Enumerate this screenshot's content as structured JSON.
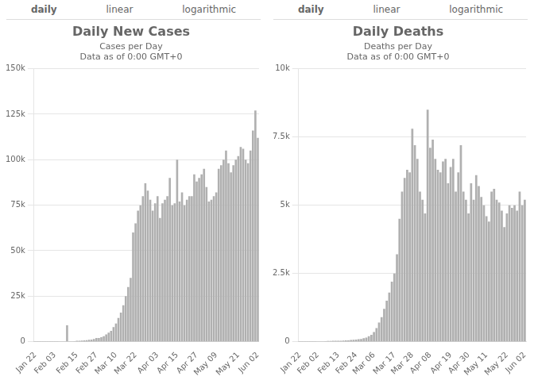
{
  "chart_data": [
    {
      "type": "bar",
      "title": "Daily New Cases",
      "subtitle": "Cases per Day\nData as of 0:00 GMT+0",
      "annotations": [
        "daily",
        "linear",
        "logarithmic"
      ],
      "categories": [
        "Jan 22",
        null,
        null,
        null,
        null,
        null,
        null,
        null,
        "Feb 03",
        null,
        null,
        null,
        null,
        null,
        null,
        null,
        null,
        "Feb 15",
        null,
        null,
        null,
        null,
        null,
        null,
        null,
        "Feb 27",
        null,
        null,
        null,
        null,
        null,
        null,
        null,
        "Mar 10",
        null,
        null,
        null,
        null,
        null,
        null,
        null,
        "Mar 22",
        null,
        null,
        null,
        null,
        null,
        null,
        null,
        null,
        "Apr 03",
        null,
        null,
        null,
        null,
        null,
        null,
        null,
        "Apr 15",
        null,
        null,
        null,
        null,
        null,
        null,
        null,
        "Apr 27",
        null,
        null,
        null,
        null,
        null,
        null,
        null,
        "May 09",
        null,
        null,
        null,
        null,
        null,
        null,
        null,
        null,
        "May 21",
        null,
        null,
        null,
        null,
        null,
        null,
        null,
        "Jun 02"
      ],
      "values": [
        50,
        50,
        50,
        50,
        50,
        50,
        50,
        100,
        100,
        100,
        150,
        200,
        200,
        9000,
        200,
        200,
        300,
        500,
        500,
        600,
        700,
        800,
        1000,
        1200,
        1500,
        2000,
        2000,
        2500,
        3000,
        4000,
        5000,
        6000,
        8000,
        10000,
        13000,
        16000,
        20000,
        25000,
        30000,
        35000,
        60000,
        65000,
        72000,
        75000,
        80000,
        87000,
        83000,
        78000,
        72000,
        76000,
        80000,
        68000,
        76000,
        78000,
        80000,
        90000,
        75000,
        76000,
        100000,
        77000,
        82000,
        75000,
        78000,
        80000,
        80000,
        92000,
        88000,
        90000,
        92000,
        95000,
        85000,
        77000,
        78000,
        80000,
        82000,
        95000,
        97000,
        100000,
        105000,
        98000,
        93000,
        97000,
        100000,
        102000,
        107000,
        106000,
        100000,
        98000,
        105000,
        116000,
        127000,
        112000
      ],
      "color": "#b0b0b0",
      "ylim": [
        0,
        150000
      ],
      "yticks": [
        0,
        {
          "value": 25000,
          "label": "25k"
        },
        {
          "value": 50000,
          "label": "50k"
        },
        {
          "value": 75000,
          "label": "75k"
        },
        {
          "value": 100000,
          "label": "100k"
        },
        {
          "value": 125000,
          "label": "125k"
        },
        {
          "value": 150000,
          "label": "150k"
        }
      ],
      "grid": true
    },
    {
      "type": "bar",
      "title": "Daily Deaths",
      "subtitle": "Deaths per Day\nData as of 0:00 GMT+0",
      "annotations": [
        "daily",
        "linear",
        "logarithmic"
      ],
      "categories": [
        "Jan 22",
        null,
        null,
        null,
        null,
        null,
        null,
        "Feb 02",
        null,
        null,
        null,
        null,
        null,
        null,
        null,
        "Feb 13",
        null,
        null,
        null,
        null,
        null,
        null,
        "Feb 24",
        null,
        null,
        null,
        null,
        null,
        null,
        "Mar 06",
        null,
        null,
        null,
        null,
        null,
        null,
        null,
        "Mar 17",
        null,
        null,
        null,
        null,
        null,
        null,
        "Mar 28",
        null,
        null,
        null,
        null,
        null,
        null,
        "Apr 08",
        null,
        null,
        null,
        null,
        null,
        null,
        null,
        "Apr 19",
        null,
        null,
        null,
        null,
        null,
        null,
        "Apr 30",
        null,
        null,
        null,
        null,
        null,
        null,
        "May 11",
        null,
        null,
        null,
        null,
        null,
        null,
        null,
        "May 22",
        null,
        null,
        null,
        null,
        null,
        null,
        "Jun 02"
      ],
      "values": [
        5,
        5,
        5,
        5,
        5,
        5,
        5,
        10,
        10,
        15,
        20,
        25,
        25,
        30,
        30,
        30,
        35,
        40,
        45,
        50,
        60,
        70,
        80,
        90,
        100,
        130,
        150,
        200,
        250,
        350,
        500,
        700,
        900,
        1200,
        1500,
        1800,
        2200,
        2500,
        3200,
        4500,
        5500,
        6000,
        6300,
        6200,
        7800,
        7200,
        6700,
        5500,
        5200,
        4700,
        8500,
        7100,
        7400,
        6700,
        6300,
        6200,
        6600,
        6700,
        5800,
        6400,
        6700,
        5500,
        6200,
        7200,
        5500,
        5200,
        4700,
        5800,
        5200,
        6100,
        5700,
        5300,
        5000,
        4600,
        4400,
        5500,
        5600,
        5200,
        5100,
        4800,
        4200,
        4700,
        5000,
        4900,
        5000,
        4800,
        5500,
        5000,
        5200
      ],
      "color": "#b0b0b0",
      "ylim": [
        0,
        10000
      ],
      "yticks": [
        0,
        {
          "value": 2500,
          "label": "2.5k"
        },
        {
          "value": 5000,
          "label": "5k"
        },
        {
          "value": 7500,
          "label": "7.5k"
        },
        {
          "value": 10000,
          "label": "10k"
        }
      ],
      "grid": true
    }
  ]
}
